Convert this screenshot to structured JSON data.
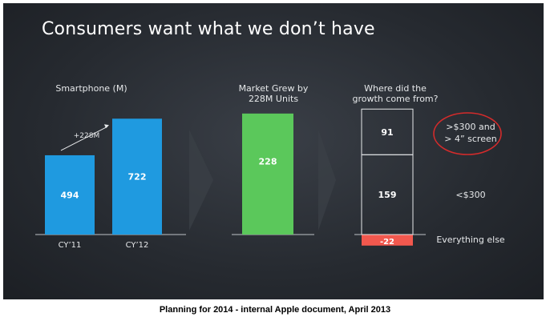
{
  "slide": {
    "title": "Consumers want what we don’t have"
  },
  "caption": "Planning for 2014 - internal Apple document, April 2013",
  "colors": {
    "background": "#2a2e34",
    "blue_bar": "#1f9ae0",
    "green_bar": "#5bc85b",
    "red_bar": "#f2584e",
    "circle": "#d42b2b"
  },
  "chart_data": [
    {
      "type": "bar",
      "title": "Smartphone (M)",
      "categories": [
        "CY’11",
        "CY’12"
      ],
      "values": [
        494,
        722
      ],
      "annotation": "+228M"
    },
    {
      "type": "bar",
      "title": "Market Grew by 228M Units",
      "categories": [
        ""
      ],
      "values": [
        228
      ]
    },
    {
      "type": "bar",
      "title": "Where did the growth come from?",
      "stacked": true,
      "segments": [
        {
          "label": "Everything else",
          "value": -22,
          "value_label": "-22"
        },
        {
          "label": "<$300",
          "value": 159,
          "value_label": "159"
        },
        {
          "label": ">$300 and > 4” screen",
          "value": 91,
          "value_label": "91",
          "label_lines": [
            ">$300 and",
            "> 4” screen"
          ],
          "highlighted": true
        }
      ]
    }
  ]
}
